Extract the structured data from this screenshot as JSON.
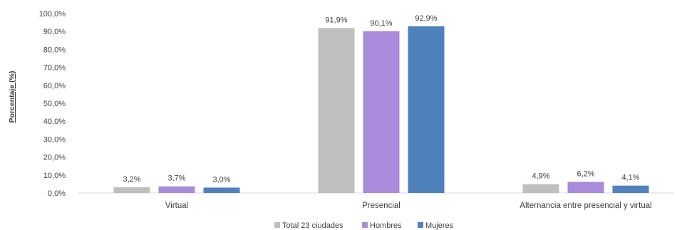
{
  "chart_data": {
    "type": "bar",
    "ylabel": "Porcentaje (%)",
    "ylim": [
      0,
      100
    ],
    "yticks": [
      "0,0%",
      "10,0%",
      "20,0%",
      "30,0%",
      "40,0%",
      "50,0%",
      "60,0%",
      "70,0%",
      "80,0%",
      "90,0%",
      "100,0%"
    ],
    "categories": [
      "Virtual",
      "Presencial",
      "Alternancia entre presencial y virtual"
    ],
    "series": [
      {
        "name": "Total 23 ciudades",
        "color": "#bfbfbf",
        "values": [
          3.2,
          91.9,
          4.9
        ],
        "labels": [
          "3,2%",
          "91,9%",
          "4,9%"
        ]
      },
      {
        "name": "Hombres",
        "color": "#a98bdb",
        "values": [
          3.7,
          90.1,
          6.2
        ],
        "labels": [
          "3,7%",
          "90,1%",
          "6,2%"
        ]
      },
      {
        "name": "Mujeres",
        "color": "#4f81bd",
        "values": [
          3.0,
          92.9,
          4.1
        ],
        "labels": [
          "3,0%",
          "92,9%",
          "4,1%"
        ]
      }
    ],
    "grid": false,
    "legend_position": "bottom"
  }
}
